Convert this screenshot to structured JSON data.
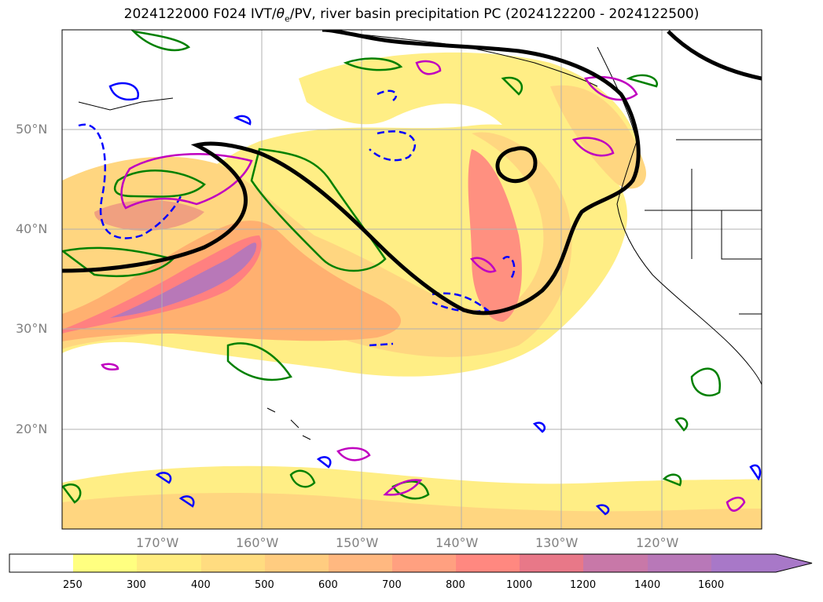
{
  "title": "2024122000 F024 IVT/θe/PV, river basin precipitation PC (2024122200 - 2024122500)",
  "title_parts": {
    "prefix": "2024122000 F024 IVT/",
    "theta": "θ",
    "sub": "e",
    "suffix": "/PV, river basin precipitation PC (2024122200 - 2024122500)"
  },
  "map": {
    "lat_labels": [
      "50°N",
      "40°N",
      "30°N",
      "20°N"
    ],
    "lon_labels": [
      "170°W",
      "160°W",
      "150°W",
      "140°W",
      "130°W",
      "120°W"
    ],
    "lat_values": [
      50,
      40,
      30,
      20
    ],
    "lon_values": [
      -170,
      -160,
      -150,
      -140,
      -130,
      -120
    ],
    "lat_range": [
      10,
      60
    ],
    "lon_range": [
      -180,
      -110
    ],
    "gridlines": true
  },
  "colorbar": {
    "ticks": [
      "250",
      "300",
      "400",
      "500",
      "600",
      "700",
      "800",
      "1000",
      "1200",
      "1400",
      "1600"
    ],
    "colors": [
      "#ffffff",
      "#ffff80",
      "#ffec80",
      "#ffdc80",
      "#ffcc80",
      "#ffb880",
      "#ffa080",
      "#ff8880",
      "#e87888",
      "#c878a8",
      "#a878c8"
    ],
    "extend": "max"
  },
  "styles": {
    "pv_contour": "#000000",
    "green_contour": "#008000",
    "blue_contour": "#0000ff",
    "magenta_contour": "#c000c0"
  }
}
